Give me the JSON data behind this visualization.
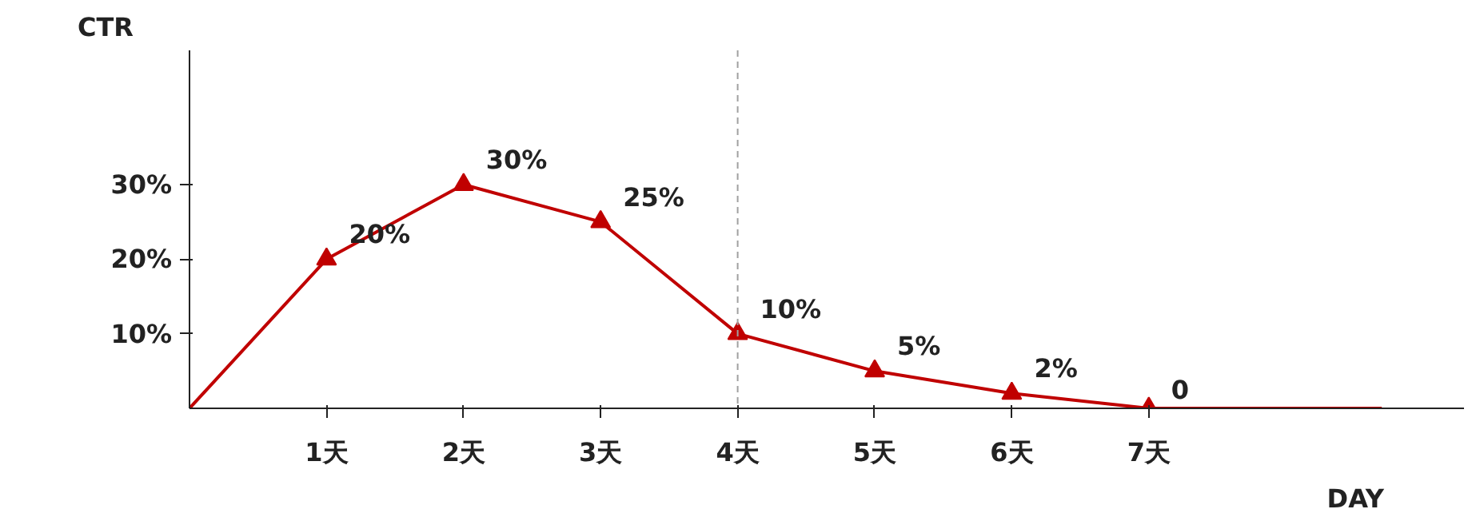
{
  "chart_data": {
    "type": "line",
    "xlabel": "DAY",
    "ylabel": "CTR",
    "xlim": [
      0,
      9.3
    ],
    "ylim": [
      0,
      48
    ],
    "xticks": [
      {
        "value": 1,
        "label": "1天"
      },
      {
        "value": 2,
        "label": "2天"
      },
      {
        "value": 3,
        "label": "3天"
      },
      {
        "value": 4,
        "label": "4天"
      },
      {
        "value": 5,
        "label": "5天"
      },
      {
        "value": 6,
        "label": "6天"
      },
      {
        "value": 7,
        "label": "7天"
      }
    ],
    "yticks": [
      {
        "value": 10,
        "label": "10%"
      },
      {
        "value": 20,
        "label": "20%"
      },
      {
        "value": 30,
        "label": "30%"
      }
    ],
    "grid": false,
    "ref_lines": [
      {
        "axis": "x",
        "value": 4,
        "color": "#a0a0a0",
        "line_style": "dashed"
      }
    ],
    "series": [
      {
        "color": "#c00000",
        "marker": "none",
        "x": [
          0,
          1,
          2,
          3,
          4,
          5,
          6,
          7,
          8.7
        ],
        "values": [
          0,
          20,
          30,
          25,
          10,
          5,
          2,
          0,
          0
        ]
      },
      {
        "type": "scatter",
        "color": "#c00000",
        "marker": "triangle",
        "x": [
          1,
          2,
          3,
          4,
          5,
          6,
          7
        ],
        "values": [
          20,
          30,
          25,
          10,
          5,
          2,
          0
        ],
        "value_labels": [
          "20%",
          "30%",
          "25%",
          "10%",
          "5%",
          "2%",
          "0"
        ]
      }
    ]
  }
}
